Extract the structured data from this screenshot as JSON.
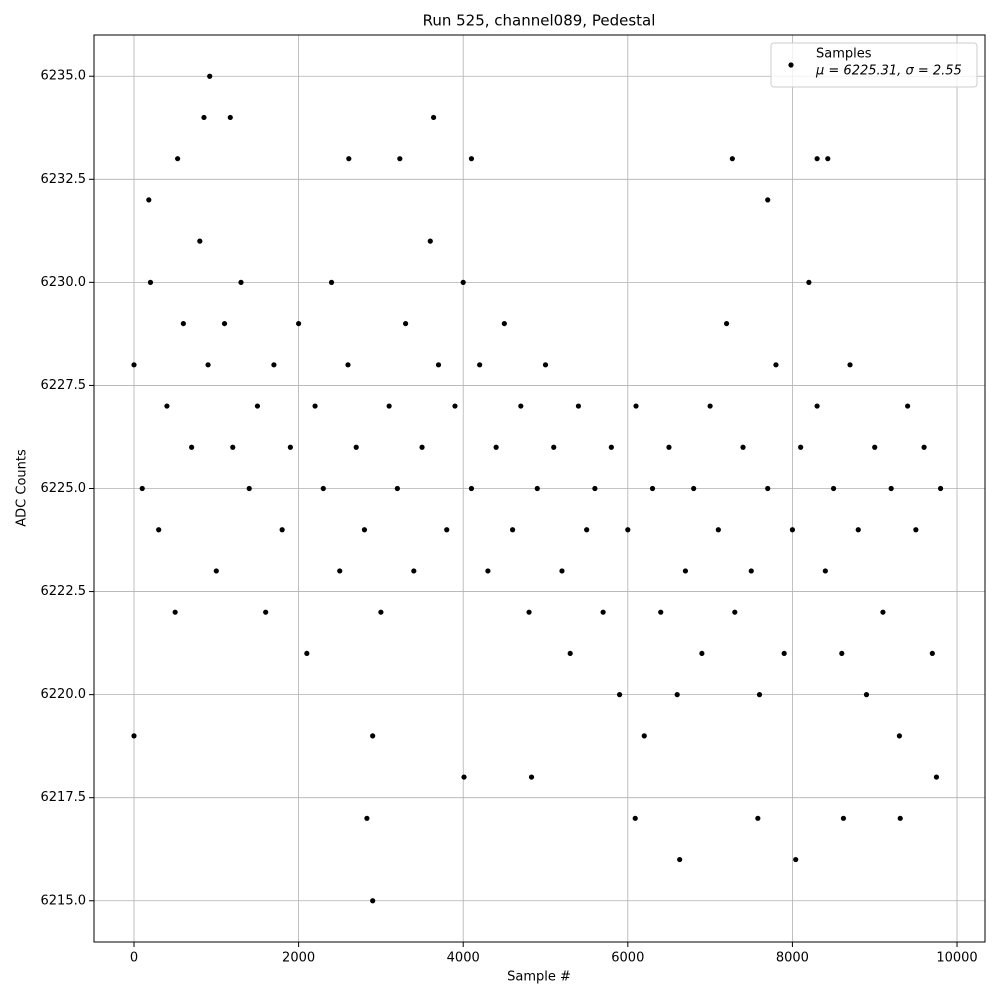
{
  "chart_data": {
    "type": "scatter",
    "title": "Run 525, channel089, Pedestal",
    "xlabel": "Sample #",
    "ylabel": "ADC Counts",
    "xlim": [
      -486,
      10340
    ],
    "ylim": [
      6214,
      6236
    ],
    "xticks": [
      0,
      2000,
      4000,
      6000,
      8000,
      10000
    ],
    "yticks": [
      {
        "value": 6215,
        "label": "6215.0"
      },
      {
        "value": 6217.5,
        "label": "6217.5"
      },
      {
        "value": 6220,
        "label": "6220.0"
      },
      {
        "value": 6222.5,
        "label": "6222.5"
      },
      {
        "value": 6225,
        "label": "6225.0"
      },
      {
        "value": 6227.5,
        "label": "6227.5"
      },
      {
        "value": 6230,
        "label": "6230.0"
      },
      {
        "value": 6232.5,
        "label": "6232.5"
      },
      {
        "value": 6235,
        "label": "6235.0"
      }
    ],
    "grid": true,
    "legend": "upper right",
    "legend_stats": "μ = 6225.31, σ = 2.55",
    "series": [
      {
        "name": "Samples",
        "color": "#000000",
        "x": [
          0,
          100,
          200,
          300,
          400,
          500,
          600,
          700,
          800,
          900,
          1000,
          1100,
          1200,
          1300,
          1400,
          1500,
          1600,
          1700,
          1800,
          1900,
          2000,
          2100,
          2200,
          2300,
          2400,
          2500,
          2600,
          2700,
          2800,
          2900,
          3000,
          3100,
          3200,
          3300,
          3400,
          3500,
          3600,
          3700,
          3800,
          3900,
          4000,
          4100,
          4200,
          4300,
          4400,
          4500,
          4600,
          4700,
          4800,
          4900,
          5000,
          5100,
          5200,
          5300,
          5400,
          5500,
          5600,
          5700,
          5800,
          5900,
          6000,
          6100,
          6200,
          6300,
          6400,
          6500,
          6600,
          6700,
          6800,
          6900,
          7000,
          7100,
          7200,
          7300,
          7400,
          7500,
          7600,
          7700,
          7800,
          7900,
          8000,
          8100,
          8200,
          8300,
          8400,
          8500,
          8600,
          8700,
          8800,
          8900,
          9000,
          9100,
          9200,
          9300,
          9400,
          9500,
          9600,
          9700,
          9800,
          920,
          850,
          1170,
          3640,
          2900,
          6630,
          8040,
          2830,
          6090,
          7580,
          8620,
          9310,
          7270,
          8300,
          8430,
          530,
          4100,
          2610,
          3230,
          7700,
          180,
          4010,
          4830,
          9750,
          0
        ],
        "values": [
          6228,
          6225,
          6230,
          6224,
          6227,
          6222,
          6229,
          6226,
          6231,
          6228,
          6223,
          6229,
          6226,
          6230,
          6225,
          6227,
          6222,
          6228,
          6224,
          6226,
          6229,
          6221,
          6227,
          6225,
          6230,
          6223,
          6228,
          6226,
          6224,
          6219,
          6222,
          6227,
          6225,
          6229,
          6223,
          6226,
          6231,
          6228,
          6224,
          6227,
          6230,
          6225,
          6228,
          6223,
          6226,
          6229,
          6224,
          6227,
          6222,
          6225,
          6228,
          6226,
          6223,
          6221,
          6227,
          6224,
          6225,
          6222,
          6226,
          6220,
          6224,
          6227,
          6219,
          6225,
          6222,
          6226,
          6220,
          6223,
          6225,
          6221,
          6227,
          6224,
          6229,
          6222,
          6226,
          6223,
          6220,
          6225,
          6228,
          6221,
          6224,
          6226,
          6230,
          6227,
          6223,
          6225,
          6221,
          6228,
          6224,
          6220,
          6226,
          6222,
          6225,
          6219,
          6227,
          6224,
          6226,
          6221,
          6225,
          6235,
          6234,
          6234,
          6234,
          6215,
          6216,
          6216,
          6217,
          6217,
          6217,
          6217,
          6217,
          6233,
          6233,
          6233,
          6233,
          6233,
          6233,
          6233,
          6232,
          6232,
          6218,
          6218,
          6218,
          6219
        ]
      }
    ]
  }
}
